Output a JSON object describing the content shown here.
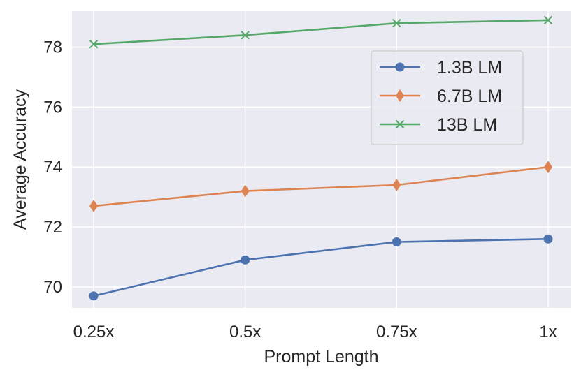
{
  "chart_data": {
    "type": "line",
    "title": "",
    "xlabel": "Prompt Length",
    "ylabel": "Average Accuracy",
    "categories": [
      "0.25x",
      "0.5x",
      "0.75x",
      "1x"
    ],
    "ylim": [
      69.3,
      79.2
    ],
    "yticks": [
      70,
      72,
      74,
      76,
      78
    ],
    "grid": true,
    "legend_position": "upper-right",
    "series": [
      {
        "name": "1.3B LM",
        "marker": "circle",
        "color": "#4c72b0",
        "values": [
          69.7,
          70.9,
          71.5,
          71.6
        ]
      },
      {
        "name": "6.7B LM",
        "marker": "diamond",
        "color": "#dd8452",
        "values": [
          72.7,
          73.2,
          73.4,
          74.0
        ]
      },
      {
        "name": "13B LM",
        "marker": "x",
        "color": "#55a868",
        "values": [
          78.1,
          78.4,
          78.8,
          78.9
        ]
      }
    ]
  },
  "style": {
    "plot_background": "#eaeaf2",
    "grid_color": "#ffffff",
    "text_color": "#262626"
  }
}
